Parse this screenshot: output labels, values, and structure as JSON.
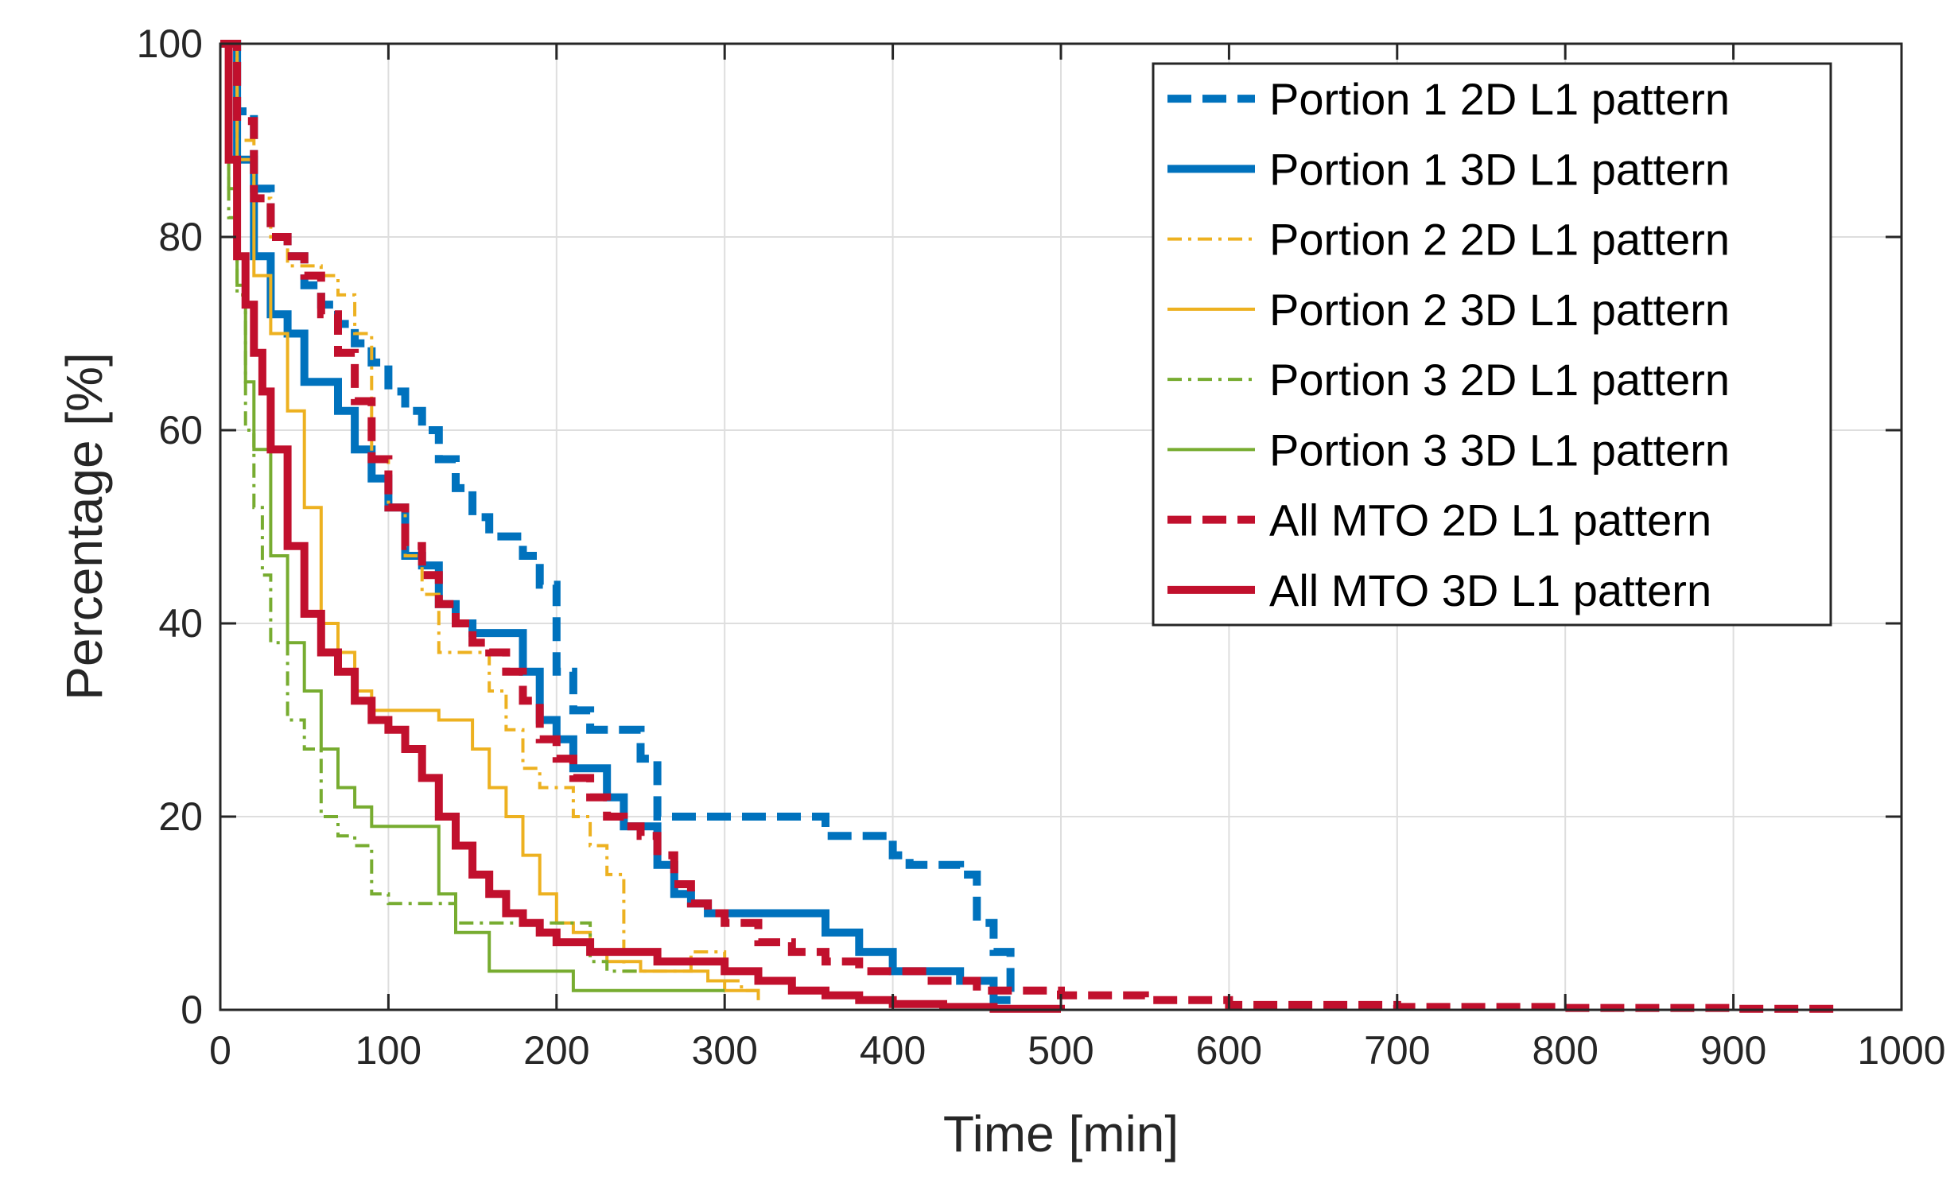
{
  "chart_data": {
    "type": "line",
    "title": "",
    "xlabel": "Time [min]",
    "ylabel": "Percentage [%]",
    "xlim": [
      0,
      1000
    ],
    "ylim": [
      0,
      100
    ],
    "xticks": [
      0,
      100,
      200,
      300,
      400,
      500,
      600,
      700,
      800,
      900,
      1000
    ],
    "yticks": [
      0,
      20,
      40,
      60,
      80,
      100
    ],
    "xtick_labels": [
      "0",
      "100",
      "200",
      "300",
      "400",
      "500",
      "600",
      "700",
      "800",
      "900",
      "1000"
    ],
    "ytick_labels": [
      "0",
      "20",
      "40",
      "60",
      "80",
      "100"
    ],
    "grid": true,
    "legend_position": "top-right",
    "series": [
      {
        "name": "Portion 1 2D L1 pattern",
        "color": "#0072BD",
        "style": "dashed",
        "weight": "thick",
        "x": [
          0,
          10,
          20,
          30,
          40,
          50,
          60,
          70,
          80,
          90,
          100,
          110,
          120,
          130,
          140,
          150,
          160,
          170,
          180,
          190,
          200,
          210,
          220,
          230,
          240,
          250,
          260,
          270,
          300,
          340,
          360,
          390,
          400,
          410,
          440,
          450,
          460,
          470
        ],
        "y": [
          100,
          93,
          85,
          80,
          78,
          75,
          73,
          71,
          69,
          67,
          64,
          62,
          60,
          57,
          54,
          51,
          49,
          49,
          47,
          44,
          35,
          31,
          29,
          29,
          29,
          26,
          20,
          20,
          20,
          20,
          18,
          18,
          16,
          15,
          14,
          9,
          6,
          1
        ]
      },
      {
        "name": "Portion 1 3D  L1 pattern",
        "color": "#0072BD",
        "style": "solid",
        "weight": "thick",
        "x": [
          0,
          10,
          20,
          30,
          40,
          50,
          60,
          70,
          80,
          90,
          100,
          110,
          120,
          130,
          140,
          150,
          160,
          170,
          180,
          190,
          200,
          210,
          220,
          230,
          240,
          250,
          260,
          270,
          280,
          290,
          300,
          320,
          340,
          360,
          380,
          400,
          420,
          440,
          460,
          470
        ],
        "y": [
          100,
          88,
          78,
          72,
          70,
          65,
          65,
          62,
          58,
          55,
          52,
          47,
          46,
          42,
          40,
          39,
          39,
          39,
          35,
          30,
          28,
          25,
          25,
          22,
          19,
          19,
          15,
          12,
          11,
          10,
          10,
          10,
          10,
          8,
          6,
          4,
          4,
          3,
          1,
          1
        ]
      },
      {
        "name": "Portion 2 2D  L1 pattern",
        "color": "#EDB120",
        "style": "dashdot",
        "weight": "thin",
        "x": [
          0,
          10,
          20,
          30,
          40,
          50,
          60,
          70,
          80,
          90,
          100,
          110,
          120,
          130,
          140,
          150,
          160,
          170,
          180,
          190,
          200,
          210,
          220,
          230,
          240,
          260,
          280,
          290,
          300,
          310,
          320
        ],
        "y": [
          100,
          90,
          84,
          80,
          77,
          77,
          76,
          74,
          70,
          57,
          52,
          47,
          43,
          37,
          37,
          37,
          33,
          29,
          25,
          23,
          23,
          20,
          17,
          14,
          4,
          4,
          6,
          6,
          3,
          2,
          1
        ]
      },
      {
        "name": "Portion 2 3D  L1 pattern",
        "color": "#EDB120",
        "style": "solid",
        "weight": "thin",
        "x": [
          0,
          10,
          20,
          30,
          40,
          50,
          60,
          70,
          80,
          90,
          100,
          110,
          120,
          130,
          140,
          150,
          160,
          170,
          180,
          190,
          200,
          210,
          220,
          230,
          250,
          270,
          290,
          300,
          320
        ],
        "y": [
          100,
          88,
          76,
          70,
          62,
          52,
          40,
          37,
          33,
          31,
          31,
          31,
          31,
          30,
          30,
          27,
          23,
          20,
          16,
          12,
          9,
          8,
          6,
          5,
          4,
          4,
          3,
          2,
          1
        ]
      },
      {
        "name": "Portion 3 2D  L1 pattern",
        "color": "#77AC30",
        "style": "dashdot",
        "weight": "thin",
        "x": [
          0,
          5,
          10,
          15,
          20,
          25,
          30,
          40,
          50,
          60,
          70,
          80,
          90,
          100,
          120,
          140,
          160,
          180,
          200,
          210,
          220,
          230,
          250
        ],
        "y": [
          100,
          82,
          74,
          60,
          52,
          45,
          38,
          30,
          27,
          20,
          18,
          17,
          12,
          11,
          11,
          9,
          9,
          9,
          9,
          9,
          5,
          4,
          4
        ]
      },
      {
        "name": "Portion 3 3D  L1 pattern",
        "color": "#77AC30",
        "style": "solid",
        "weight": "thin",
        "x": [
          0,
          5,
          10,
          15,
          20,
          30,
          40,
          50,
          60,
          70,
          80,
          90,
          100,
          110,
          120,
          130,
          140,
          160,
          180,
          200,
          210,
          220,
          240,
          260,
          280,
          300
        ],
        "y": [
          100,
          85,
          75,
          65,
          58,
          47,
          38,
          33,
          27,
          23,
          21,
          19,
          19,
          19,
          19,
          12,
          8,
          4,
          4,
          4,
          2,
          2,
          2,
          2,
          2,
          2
        ]
      },
      {
        "name": "All MTO 2D  L1 pattern",
        "color": "#C1102D",
        "style": "dashed",
        "weight": "thick",
        "x": [
          0,
          10,
          20,
          30,
          40,
          50,
          60,
          70,
          80,
          90,
          100,
          110,
          120,
          130,
          140,
          150,
          160,
          170,
          180,
          190,
          200,
          210,
          220,
          230,
          240,
          250,
          260,
          270,
          280,
          290,
          300,
          320,
          340,
          360,
          380,
          400,
          420,
          450,
          500,
          550,
          600,
          700,
          800,
          900,
          960
        ],
        "y": [
          100,
          92,
          84,
          80,
          78,
          76,
          72,
          68,
          63,
          57,
          52,
          48,
          45,
          42,
          40,
          38,
          37,
          35,
          32,
          28,
          26,
          24,
          22,
          20,
          19,
          18,
          16,
          13,
          11,
          10,
          9,
          7,
          6,
          5,
          4,
          4,
          3,
          2,
          1.5,
          1,
          0.5,
          0.3,
          0.2,
          0.1,
          0
        ]
      },
      {
        "name": "All MTO 3D  L1 pattern",
        "color": "#C1102D",
        "style": "solid",
        "weight": "thick",
        "x": [
          0,
          5,
          10,
          15,
          20,
          25,
          30,
          40,
          50,
          60,
          70,
          80,
          90,
          100,
          110,
          120,
          130,
          140,
          150,
          160,
          170,
          180,
          190,
          200,
          220,
          240,
          260,
          280,
          300,
          320,
          340,
          360,
          380,
          400,
          430,
          460,
          500
        ],
        "y": [
          100,
          88,
          78,
          73,
          68,
          64,
          58,
          48,
          41,
          37,
          35,
          32,
          30,
          29,
          27,
          24,
          20,
          17,
          14,
          12,
          10,
          9,
          8,
          7,
          6,
          6,
          5,
          5,
          4,
          3,
          2,
          1.5,
          1,
          0.6,
          0.3,
          0.1,
          0
        ]
      }
    ]
  }
}
